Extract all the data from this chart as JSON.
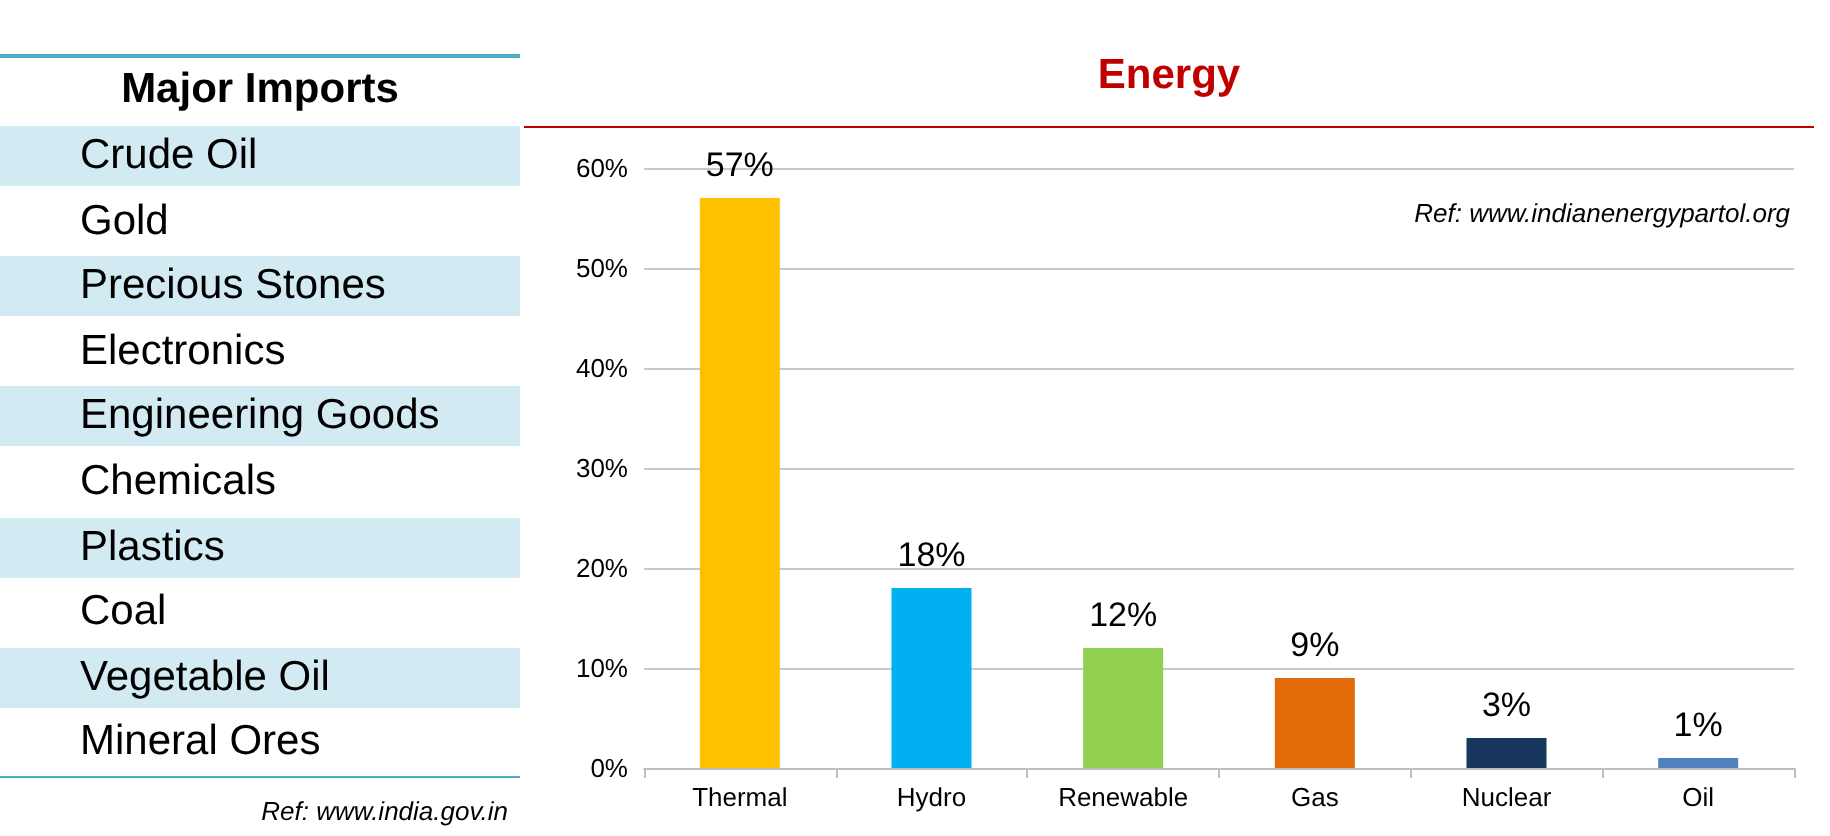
{
  "chart_data": [
    {
      "type": "other",
      "title": "Major Imports",
      "annotations": [
        "Crude Oil",
        "Gold",
        "Precious Stones",
        "Electronics",
        "Engineering Goods",
        "Chemicals",
        "Plastics",
        "Coal",
        "Vegetable Oil",
        "Mineral Ores",
        "Ref: www.india.gov.in"
      ]
    },
    {
      "type": "bar",
      "title": "Energy",
      "categories": [
        "Thermal",
        "Hydro",
        "Renewable",
        "Gas",
        "Nuclear",
        "Oil"
      ],
      "values": [
        57,
        18,
        12,
        9,
        3,
        1
      ],
      "colors": [
        "#ffc000",
        "#00b0f0",
        "#92d050",
        "#e36c0a",
        "#17375e",
        "#4f81bd"
      ],
      "value_labels": [
        "57%",
        "18%",
        "12%",
        "9%",
        "3%",
        "1%"
      ],
      "ylim": [
        0,
        60
      ],
      "yticks": [
        {
          "value": 0,
          "label": "0%"
        },
        {
          "value": 10,
          "label": "10%"
        },
        {
          "value": 20,
          "label": "20%"
        },
        {
          "value": 30,
          "label": "30%"
        },
        {
          "value": 40,
          "label": "40%"
        },
        {
          "value": 50,
          "label": "50%"
        },
        {
          "value": 60,
          "label": "60%"
        }
      ],
      "grid": "y",
      "annotations": [
        "Ref: www.indianenergypartol.org"
      ]
    }
  ]
}
